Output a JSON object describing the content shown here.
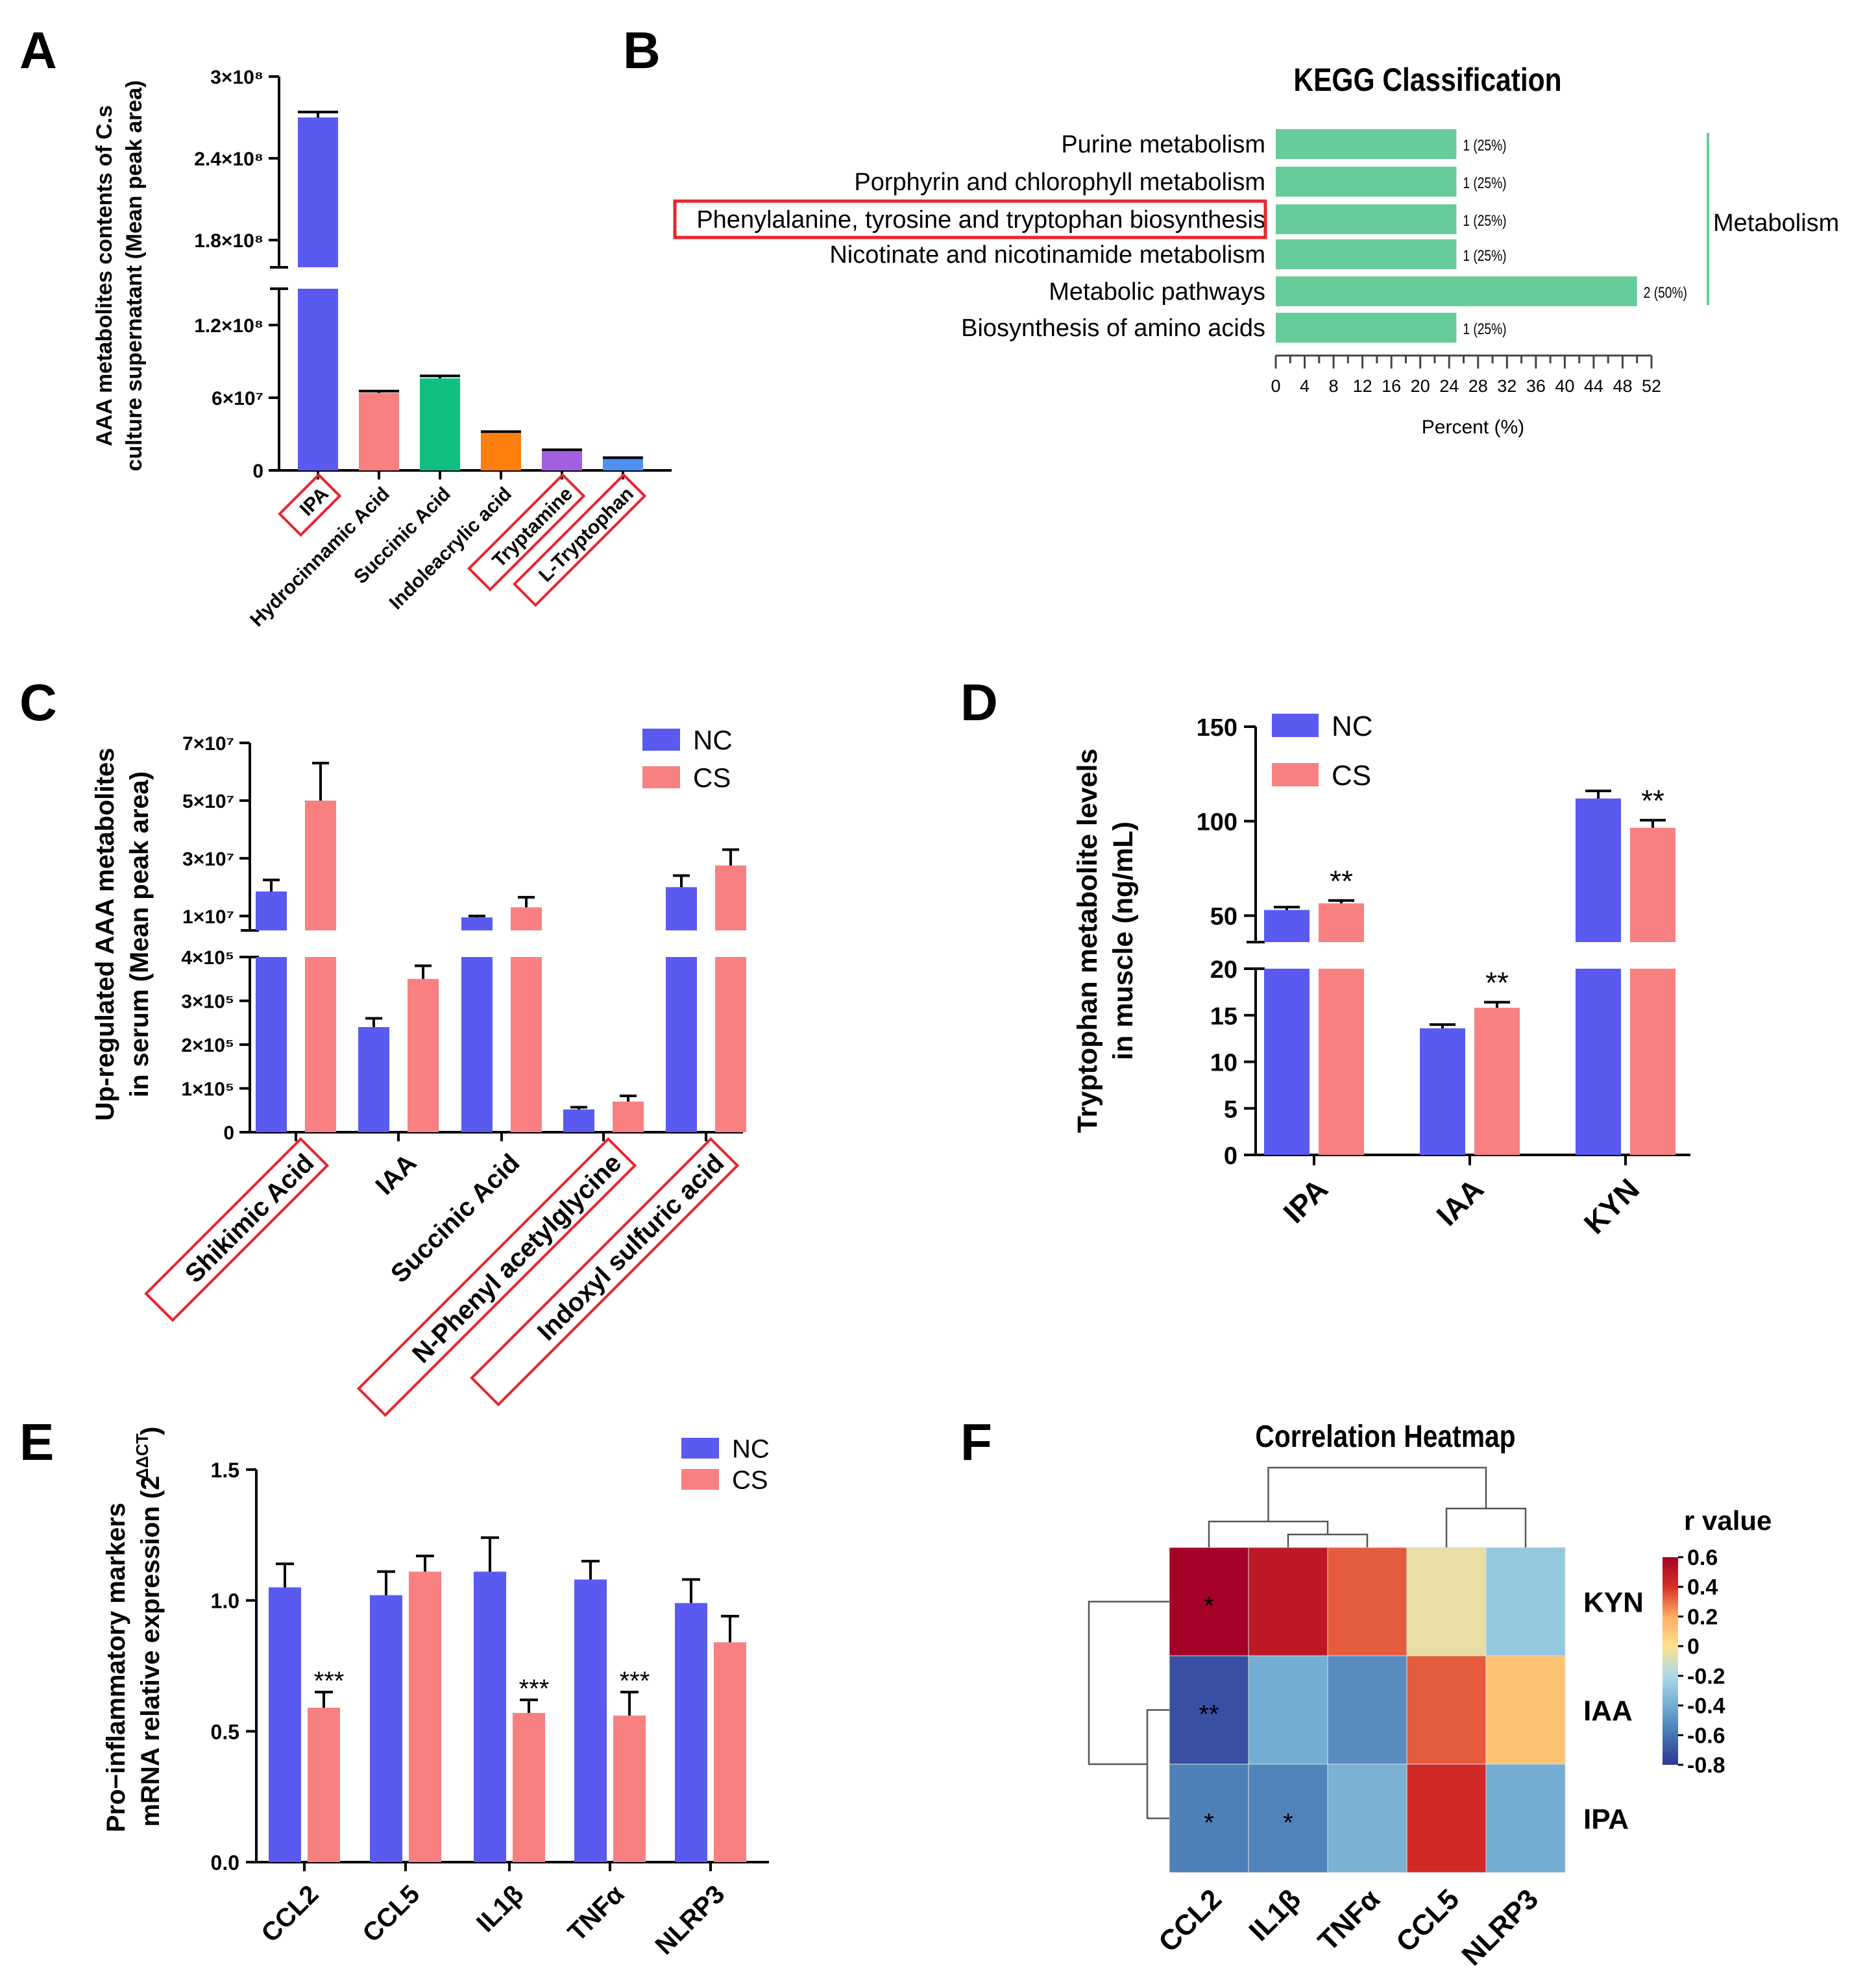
{
  "colors": {
    "nc": "#5a5af0",
    "cs": "#f88080",
    "kegg_bar": "#66cc99",
    "highlight": "#e8262a",
    "heat_low": "#313695",
    "heat_mid": "#f1edb2",
    "heat_high": "#a50026"
  },
  "panels": [
    {
      "id": "A",
      "label": "A"
    },
    {
      "id": "B",
      "label": "B"
    },
    {
      "id": "C",
      "label": "C"
    },
    {
      "id": "D",
      "label": "D"
    },
    {
      "id": "E",
      "label": "E"
    },
    {
      "id": "F",
      "label": "F"
    }
  ],
  "chart_data": [
    {
      "id": "A",
      "type": "bar",
      "ylabel_line1": "AAA metabolites contents of C.s",
      "ylabel_line2": "culture supernatant (Mean peak area)",
      "categories": [
        "IPA",
        "Hydrocinnamic Acid",
        "Succinic Acid",
        "Indoleacrylic acid",
        "Tryptamine",
        "L-Tryptophan"
      ],
      "highlighted": [
        true,
        false,
        false,
        false,
        true,
        true
      ],
      "values": [
        270000000,
        64000000,
        76000000,
        31000000,
        16000000,
        10000000
      ],
      "errors": [
        4000000,
        1500000,
        2000000,
        1000000,
        1000000,
        500000
      ],
      "bar_colors": [
        "#5a5af0",
        "#f88080",
        "#10c080",
        "#ff7f0e",
        "#a060e0",
        "#5090f0"
      ],
      "y_ticks_low": [
        {
          "v": 0,
          "t": "0"
        },
        {
          "v": 60000000,
          "t": "6×10⁷"
        },
        {
          "v": 120000000,
          "t": "1.2×10⁸"
        }
      ],
      "y_ticks_high": [
        {
          "v": 180000000,
          "t": "1.8×10⁸"
        },
        {
          "v": 240000000,
          "t": "2.4×10⁸"
        },
        {
          "v": 300000000,
          "t": "3×10⁸"
        }
      ],
      "ylim_low": [
        0,
        150000000
      ],
      "ylim_high": [
        160000000,
        300000000
      ]
    },
    {
      "id": "B",
      "type": "bar",
      "title": "KEGG Classification",
      "xlabel": "Percent (%)",
      "categories": [
        "Purine metabolism",
        "Porphyrin and chlorophyll metabolism",
        "Phenylalanine, tyrosine and tryptophan biosynthesis",
        "Nicotinate and nicotinamide metabolism",
        "Metabolic pathways",
        "Biosynthesis of amino acids"
      ],
      "highlighted": [
        false,
        false,
        true,
        false,
        false,
        false
      ],
      "values": [
        25,
        25,
        25,
        25,
        50,
        25
      ],
      "value_labels": [
        "1 (25%)",
        "1 (25%)",
        "1 (25%)",
        "1 (25%)",
        "2 (50%)",
        "1 (25%)"
      ],
      "group_label": "Metabolism",
      "x_ticks": [
        0,
        4,
        8,
        12,
        16,
        20,
        24,
        28,
        32,
        36,
        40,
        44,
        48,
        52
      ],
      "xlim": [
        0,
        52
      ]
    },
    {
      "id": "C",
      "type": "bar",
      "ylabel_line1": "Up-regulated AAA metabolites",
      "ylabel_line2": "in serum (Mean peak area)",
      "categories": [
        "Shikimic Acid",
        "IAA",
        "Succinic Acid",
        "N-Phenyl acetylglycine",
        "Indoxyl sulfuric acid"
      ],
      "highlighted": [
        true,
        false,
        false,
        true,
        true
      ],
      "series": [
        {
          "name": "NC",
          "values": [
            18500000,
            240000,
            9500000,
            52000,
            20000000
          ],
          "errors": [
            4000000,
            20000,
            500000,
            5000,
            4000000
          ]
        },
        {
          "name": "CS",
          "values": [
            50000000,
            350000,
            13000000,
            70000,
            27500000
          ],
          "errors": [
            13000000,
            30000,
            3500000,
            13000,
            5500000
          ]
        }
      ],
      "y_ticks_low": [
        {
          "v": 0,
          "t": "0"
        },
        {
          "v": 100000,
          "t": "1×10⁵"
        },
        {
          "v": 200000,
          "t": "2×10⁵"
        },
        {
          "v": 300000,
          "t": "3×10⁵"
        },
        {
          "v": 400000,
          "t": "4×10⁵"
        }
      ],
      "y_ticks_high": [
        {
          "v": 10000000,
          "t": "1×10⁷"
        },
        {
          "v": 30000000,
          "t": "3×10⁷"
        },
        {
          "v": 50000000,
          "t": "5×10⁷"
        },
        {
          "v": 70000000,
          "t": "7×10⁷"
        }
      ],
      "ylim_low": [
        0,
        400000
      ],
      "ylim_high": [
        5000000,
        70000000
      ]
    },
    {
      "id": "D",
      "type": "bar",
      "ylabel_line1": "Tryptophan metabolite levels",
      "ylabel_line2": "in muscle (ng/mL)",
      "categories": [
        "IPA",
        "IAA",
        "KYN"
      ],
      "series": [
        {
          "name": "NC",
          "values": [
            53,
            13.6,
            112
          ],
          "errors": [
            1.5,
            0.4,
            4
          ]
        },
        {
          "name": "CS",
          "values": [
            56.5,
            15.8,
            96.5
          ],
          "errors": [
            1.5,
            0.6,
            4
          ]
        }
      ],
      "significance": [
        "**",
        "**",
        "**"
      ],
      "y_ticks_low": [
        0,
        5,
        10,
        15,
        20
      ],
      "y_ticks_high": [
        50,
        100,
        150
      ],
      "ylim_low": [
        0,
        20
      ],
      "ylim_high": [
        36,
        150
      ]
    },
    {
      "id": "E",
      "type": "bar",
      "ylabel_line1": "Pro−inflammatory markers",
      "ylabel_line2": "mRNA relative expression (2",
      "ylabel_sup": "-ΔΔCT",
      "ylabel_close": ")",
      "categories": [
        "CCL2",
        "CCL5",
        "IL1β",
        "TNFα",
        "NLRP3"
      ],
      "series": [
        {
          "name": "NC",
          "values": [
            1.05,
            1.02,
            1.11,
            1.08,
            0.99
          ],
          "errors": [
            0.09,
            0.09,
            0.13,
            0.07,
            0.09
          ]
        },
        {
          "name": "CS",
          "values": [
            0.59,
            1.11,
            0.57,
            0.56,
            0.84
          ],
          "errors": [
            0.06,
            0.06,
            0.05,
            0.09,
            0.1
          ]
        }
      ],
      "significance": [
        "***",
        "",
        "***",
        "***",
        ""
      ],
      "y_ticks": [
        "0.0",
        "0.5",
        "1.0",
        "1.5"
      ],
      "ylim": [
        0,
        1.5
      ]
    },
    {
      "id": "F",
      "type": "heatmap",
      "title": "Correlation Heatmap",
      "legend_title": "r value",
      "legend_ticks": [
        "0.6",
        "0.4",
        "0.2",
        "0",
        "-0.2",
        "-0.4",
        "-0.6",
        "-0.8"
      ],
      "legend_range": [
        -0.8,
        0.6
      ],
      "columns": [
        "CCL2",
        "IL1β",
        "TNFα",
        "CCL5",
        "NLRP3"
      ],
      "rows": [
        "KYN",
        "IAA",
        "IPA"
      ],
      "values": [
        [
          0.62,
          0.5,
          0.33,
          -0.05,
          -0.28
        ],
        [
          -0.72,
          -0.4,
          -0.52,
          0.33,
          0.12
        ],
        [
          -0.56,
          -0.55,
          -0.38,
          0.43,
          -0.4
        ]
      ],
      "stars": [
        [
          "*",
          "",
          "",
          "",
          ""
        ],
        [
          "**",
          "",
          "",
          "",
          ""
        ],
        [
          "*",
          "*",
          "",
          "",
          ""
        ]
      ]
    }
  ]
}
